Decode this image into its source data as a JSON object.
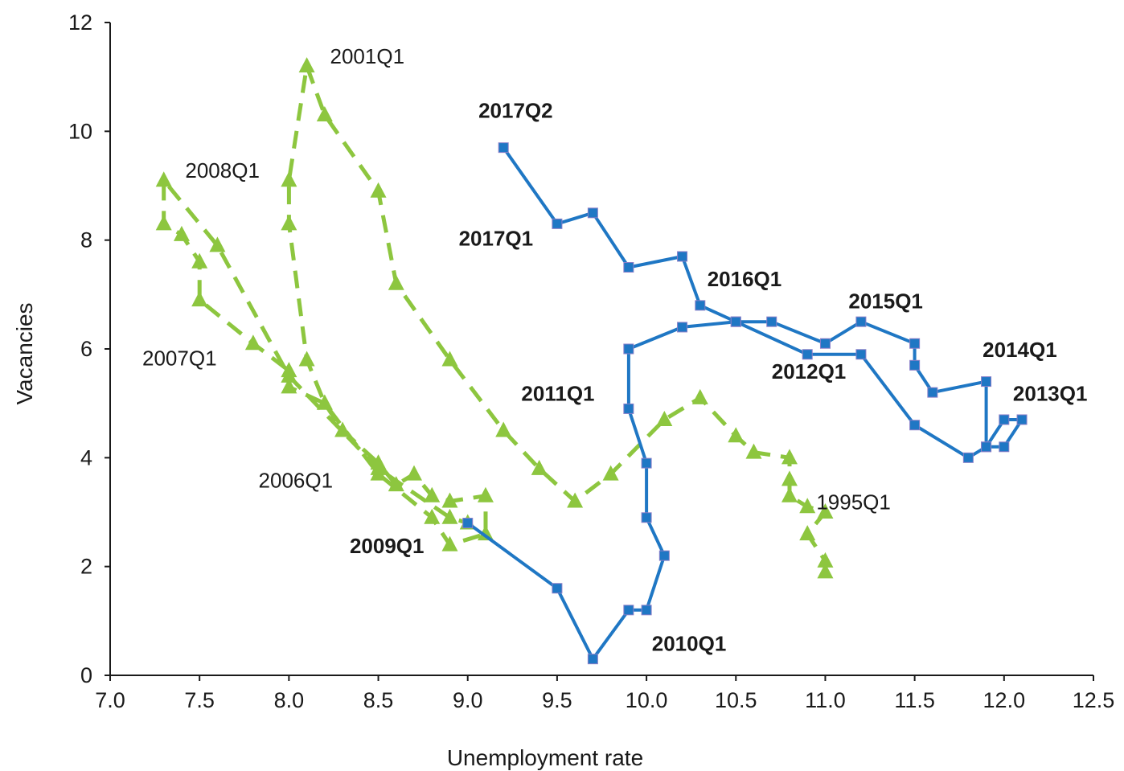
{
  "chart_data": {
    "type": "scatter",
    "xlabel": "Unemployment rate",
    "ylabel": "Vacancies",
    "xlim": [
      7.0,
      12.5
    ],
    "ylim": [
      0,
      12
    ],
    "xticks": [
      "7.0",
      "7.5",
      "8.0",
      "8.5",
      "9.0",
      "9.5",
      "10.0",
      "10.5",
      "11.0",
      "11.5",
      "12.0",
      "12.5"
    ],
    "yticks": [
      "0",
      "2",
      "4",
      "6",
      "8",
      "10",
      "12"
    ],
    "grid": false,
    "legend": "none",
    "series": [
      {
        "color": "#8dc63f",
        "line_style": "dashed",
        "marker": "triangle",
        "points": [
          [
            11.0,
            1.9
          ],
          [
            11.0,
            2.1
          ],
          [
            10.9,
            2.6
          ],
          [
            11.0,
            3.0
          ],
          [
            10.9,
            3.1
          ],
          [
            10.8,
            3.3
          ],
          [
            10.8,
            3.6
          ],
          [
            10.8,
            4.0
          ],
          [
            10.6,
            4.1
          ],
          [
            10.5,
            4.4
          ],
          [
            10.3,
            5.1
          ],
          [
            10.1,
            4.7
          ],
          [
            9.8,
            3.7
          ],
          [
            9.6,
            3.2
          ],
          [
            9.4,
            3.8
          ],
          [
            9.2,
            4.5
          ],
          [
            8.9,
            5.8
          ],
          [
            8.6,
            7.2
          ],
          [
            8.5,
            8.9
          ],
          [
            8.2,
            10.3
          ],
          [
            8.1,
            11.2
          ],
          [
            8.0,
            9.1
          ],
          [
            8.0,
            8.3
          ],
          [
            8.1,
            5.8
          ],
          [
            8.2,
            5.0
          ],
          [
            8.3,
            4.5
          ],
          [
            8.5,
            3.9
          ],
          [
            8.6,
            3.5
          ],
          [
            8.7,
            3.7
          ],
          [
            8.8,
            3.3
          ],
          [
            8.9,
            3.2
          ],
          [
            9.1,
            3.3
          ],
          [
            9.1,
            2.6
          ],
          [
            8.9,
            2.4
          ],
          [
            8.8,
            2.9
          ],
          [
            8.5,
            3.7
          ],
          [
            8.2,
            5.0
          ],
          [
            8.0,
            5.3
          ],
          [
            8.0,
            5.6
          ],
          [
            7.8,
            6.1
          ],
          [
            7.5,
            6.9
          ],
          [
            7.5,
            7.6
          ],
          [
            7.4,
            8.1
          ],
          [
            7.3,
            8.3
          ],
          [
            7.3,
            9.1
          ],
          [
            7.6,
            7.9
          ],
          [
            8.0,
            5.5
          ],
          [
            8.5,
            3.8
          ],
          [
            8.9,
            2.9
          ],
          [
            9.0,
            2.8
          ]
        ]
      },
      {
        "color": "#1f77c4",
        "line_style": "solid",
        "marker": "square",
        "points": [
          [
            9.0,
            2.8
          ],
          [
            9.5,
            1.6
          ],
          [
            9.7,
            0.3
          ],
          [
            9.9,
            1.2
          ],
          [
            10.0,
            1.2
          ],
          [
            10.1,
            2.2
          ],
          [
            10.0,
            2.9
          ],
          [
            10.0,
            3.9
          ],
          [
            9.9,
            4.9
          ],
          [
            9.9,
            6.0
          ],
          [
            10.2,
            6.4
          ],
          [
            10.5,
            6.5
          ],
          [
            10.7,
            6.5
          ],
          [
            11.0,
            6.1
          ],
          [
            11.2,
            6.5
          ],
          [
            11.5,
            6.1
          ],
          [
            11.5,
            5.7
          ],
          [
            11.6,
            5.2
          ],
          [
            11.9,
            5.4
          ],
          [
            11.9,
            4.2
          ],
          [
            12.0,
            4.2
          ],
          [
            12.1,
            4.7
          ],
          [
            12.0,
            4.7
          ],
          [
            11.9,
            4.2
          ],
          [
            11.8,
            4.0
          ],
          [
            11.5,
            4.6
          ],
          [
            11.2,
            5.9
          ],
          [
            10.9,
            5.9
          ],
          [
            10.5,
            6.5
          ],
          [
            10.3,
            6.8
          ],
          [
            10.2,
            7.7
          ],
          [
            9.9,
            7.5
          ],
          [
            9.7,
            8.5
          ],
          [
            9.5,
            8.3
          ],
          [
            9.2,
            9.7
          ]
        ]
      }
    ],
    "annotations": [
      {
        "text": "2001Q1",
        "x": 8.23,
        "y": 11.25,
        "bold": false
      },
      {
        "text": "2017Q2",
        "x": 9.06,
        "y": 10.25,
        "bold": true
      },
      {
        "text": "2008Q1",
        "x": 7.42,
        "y": 9.15,
        "bold": false
      },
      {
        "text": "2017Q1",
        "x": 8.95,
        "y": 7.9,
        "bold": true
      },
      {
        "text": "2016Q1",
        "x": 10.34,
        "y": 7.15,
        "bold": true
      },
      {
        "text": "2015Q1",
        "x": 11.13,
        "y": 6.75,
        "bold": true
      },
      {
        "text": "2007Q1",
        "x": 7.18,
        "y": 5.7,
        "bold": false
      },
      {
        "text": "2012Q1",
        "x": 10.7,
        "y": 5.45,
        "bold": true
      },
      {
        "text": "2014Q1",
        "x": 11.88,
        "y": 5.85,
        "bold": true
      },
      {
        "text": "2011Q1",
        "x": 9.3,
        "y": 5.05,
        "bold": true
      },
      {
        "text": "2013Q1",
        "x": 12.05,
        "y": 5.05,
        "bold": true
      },
      {
        "text": "2006Q1",
        "x": 7.83,
        "y": 3.45,
        "bold": false
      },
      {
        "text": "1995Q1",
        "x": 10.95,
        "y": 3.05,
        "bold": false
      },
      {
        "text": "2009Q1",
        "x": 8.34,
        "y": 2.25,
        "bold": true
      },
      {
        "text": "2010Q1",
        "x": 10.03,
        "y": 0.45,
        "bold": true
      }
    ]
  }
}
